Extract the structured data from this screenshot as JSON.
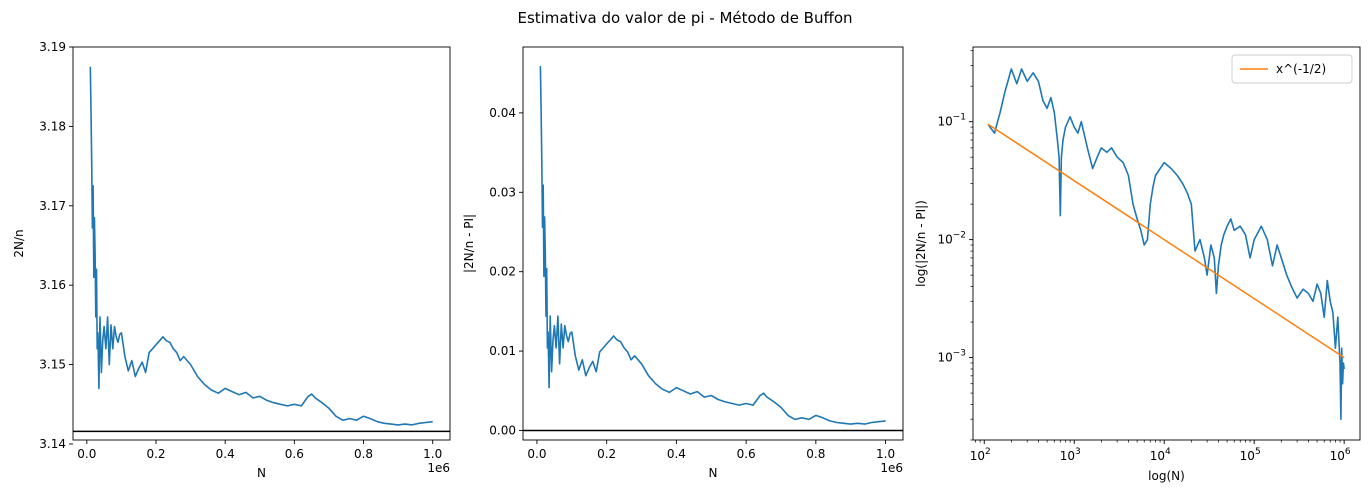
{
  "figure": {
    "suptitle": "Estimativa do valor de pi - Método de Buffon"
  },
  "chart_data": [
    {
      "type": "line",
      "xlabel": "N",
      "ylabel": "2N/n",
      "x_offset_label": "1e6",
      "xlim": [
        -40000,
        1050000
      ],
      "ylim": [
        3.1405,
        3.19
      ],
      "x_ticks": [
        0,
        200000,
        400000,
        600000,
        800000,
        1000000
      ],
      "x_tick_labels": [
        "0.0",
        "0.2",
        "0.4",
        "0.6",
        "0.8",
        "1.0"
      ],
      "y_ticks": [
        3.14,
        3.15,
        3.16,
        3.17,
        3.18,
        3.19
      ],
      "y_tick_labels": [
        "3.14",
        "3.15",
        "3.16",
        "3.17",
        "3.18",
        "3.19"
      ],
      "reference_line": {
        "y": 3.14159,
        "color": "#000000"
      },
      "series": [
        {
          "color": "#1f77b4",
          "x": [
            10000,
            12000,
            14000,
            16000,
            18000,
            20000,
            22000,
            24000,
            26000,
            28000,
            30000,
            32000,
            35000,
            38000,
            42000,
            46000,
            50000,
            55000,
            60000,
            65000,
            70000,
            75000,
            80000,
            85000,
            90000,
            95000,
            100000,
            110000,
            120000,
            130000,
            140000,
            150000,
            160000,
            170000,
            180000,
            190000,
            200000,
            210000,
            220000,
            230000,
            240000,
            250000,
            260000,
            270000,
            280000,
            300000,
            320000,
            340000,
            360000,
            380000,
            400000,
            420000,
            440000,
            460000,
            480000,
            500000,
            520000,
            540000,
            560000,
            580000,
            600000,
            620000,
            640000,
            650000,
            660000,
            680000,
            700000,
            720000,
            740000,
            760000,
            780000,
            800000,
            820000,
            840000,
            860000,
            880000,
            900000,
            920000,
            940000,
            960000,
            980000,
            1000000
          ],
          "y": [
            3.1875,
            3.182,
            3.1755,
            3.1672,
            3.1725,
            3.161,
            3.1685,
            3.164,
            3.156,
            3.162,
            3.152,
            3.154,
            3.147,
            3.156,
            3.149,
            3.153,
            3.1548,
            3.152,
            3.156,
            3.15,
            3.155,
            3.152,
            3.1548,
            3.1535,
            3.1528,
            3.1538,
            3.154,
            3.151,
            3.1492,
            3.1505,
            3.1485,
            3.1495,
            3.1503,
            3.149,
            3.1515,
            3.152,
            3.1525,
            3.153,
            3.1535,
            3.153,
            3.1528,
            3.152,
            3.1515,
            3.1505,
            3.151,
            3.15,
            3.1485,
            3.1475,
            3.1468,
            3.1464,
            3.147,
            3.1466,
            3.1462,
            3.1465,
            3.1458,
            3.146,
            3.1455,
            3.1452,
            3.145,
            3.1448,
            3.145,
            3.1448,
            3.146,
            3.1463,
            3.1458,
            3.1452,
            3.1445,
            3.1435,
            3.143,
            3.1432,
            3.143,
            3.1435,
            3.1432,
            3.1428,
            3.1426,
            3.1425,
            3.1424,
            3.1425,
            3.1424,
            3.1426,
            3.1427,
            3.1428
          ]
        }
      ]
    },
    {
      "type": "line",
      "xlabel": "N",
      "ylabel": "|2N/n - PI|",
      "x_offset_label": "1e6",
      "xlim": [
        -40000,
        1050000
      ],
      "ylim": [
        -0.0012,
        0.0483
      ],
      "x_ticks": [
        0,
        200000,
        400000,
        600000,
        800000,
        1000000
      ],
      "x_tick_labels": [
        "0.0",
        "0.2",
        "0.4",
        "0.6",
        "0.8",
        "1.0"
      ],
      "y_ticks": [
        0.0,
        0.01,
        0.02,
        0.03,
        0.04
      ],
      "y_tick_labels": [
        "0.00",
        "0.01",
        "0.02",
        "0.03",
        "0.04"
      ],
      "reference_line": {
        "y": 0,
        "color": "#000000"
      },
      "series": [
        {
          "color": "#1f77b4",
          "x": [
            10000,
            12000,
            14000,
            16000,
            18000,
            20000,
            22000,
            24000,
            26000,
            28000,
            30000,
            32000,
            35000,
            38000,
            42000,
            46000,
            50000,
            55000,
            60000,
            65000,
            70000,
            75000,
            80000,
            85000,
            90000,
            95000,
            100000,
            110000,
            120000,
            130000,
            140000,
            150000,
            160000,
            170000,
            180000,
            190000,
            200000,
            210000,
            220000,
            230000,
            240000,
            250000,
            260000,
            270000,
            280000,
            300000,
            320000,
            340000,
            360000,
            380000,
            400000,
            420000,
            440000,
            460000,
            480000,
            500000,
            520000,
            540000,
            560000,
            580000,
            600000,
            620000,
            640000,
            650000,
            660000,
            680000,
            700000,
            720000,
            740000,
            760000,
            780000,
            800000,
            820000,
            840000,
            860000,
            880000,
            900000,
            920000,
            940000,
            960000,
            980000,
            1000000
          ],
          "y": [
            0.0459,
            0.0404,
            0.0339,
            0.0256,
            0.0309,
            0.0194,
            0.0269,
            0.0224,
            0.0144,
            0.0204,
            0.0104,
            0.0124,
            0.0054,
            0.0144,
            0.0074,
            0.0114,
            0.0132,
            0.0104,
            0.0144,
            0.0084,
            0.0134,
            0.0104,
            0.0132,
            0.0119,
            0.0112,
            0.0122,
            0.0124,
            0.0094,
            0.0076,
            0.0089,
            0.0069,
            0.0079,
            0.0087,
            0.0074,
            0.0099,
            0.0104,
            0.0109,
            0.0114,
            0.0119,
            0.0114,
            0.0112,
            0.0104,
            0.0099,
            0.0089,
            0.0094,
            0.0084,
            0.0069,
            0.0059,
            0.0052,
            0.0048,
            0.0054,
            0.005,
            0.0046,
            0.0049,
            0.0042,
            0.0044,
            0.0039,
            0.0036,
            0.0034,
            0.0032,
            0.0034,
            0.0032,
            0.0044,
            0.0047,
            0.0042,
            0.0036,
            0.0029,
            0.0019,
            0.0014,
            0.0016,
            0.0014,
            0.0019,
            0.0016,
            0.0012,
            0.001,
            0.0009,
            0.0008,
            0.0009,
            0.0008,
            0.001,
            0.0011,
            0.0012
          ]
        }
      ]
    },
    {
      "type": "line",
      "xlabel": "log(N)",
      "ylabel": "log(|2N/n - PI|)",
      "x_scale": "log",
      "y_scale": "log",
      "xlim": [
        75,
        1500000
      ],
      "ylim": [
        0.0002,
        0.43
      ],
      "x_ticks": [
        100,
        1000,
        10000,
        100000,
        1000000
      ],
      "x_tick_bases": [
        "10",
        "10",
        "10",
        "10",
        "10"
      ],
      "x_tick_exponents": [
        "2",
        "3",
        "4",
        "5",
        "6"
      ],
      "y_ticks": [
        0.001,
        0.01,
        0.1
      ],
      "y_tick_bases": [
        "10",
        "10",
        "10"
      ],
      "y_tick_exponents": [
        "−3",
        "−2",
        "−1"
      ],
      "legend": {
        "position": "top-right",
        "entries": [
          "x^(-1/2)"
        ]
      },
      "series": [
        {
          "color": "#1f77b4",
          "x": [
            110,
            130,
            150,
            170,
            200,
            230,
            260,
            300,
            350,
            400,
            450,
            500,
            550,
            600,
            650,
            680,
            700,
            720,
            750,
            800,
            900,
            1000,
            1100,
            1200,
            1400,
            1600,
            1800,
            2000,
            2300,
            2600,
            3000,
            3500,
            4000,
            4500,
            5000,
            5500,
            6000,
            6500,
            7000,
            7500,
            8000,
            9000,
            10000,
            12000,
            14000,
            16000,
            18000,
            20000,
            22000,
            25000,
            28000,
            30000,
            33000,
            36000,
            38000,
            40000,
            43000,
            46000,
            50000,
            55000,
            60000,
            70000,
            80000,
            90000,
            100000,
            120000,
            140000,
            160000,
            180000,
            200000,
            230000,
            260000,
            300000,
            350000,
            400000,
            450000,
            500000,
            550000,
            600000,
            650000,
            700000,
            750000,
            800000,
            850000,
            900000,
            920000,
            940000,
            960000,
            980000,
            1000000
          ],
          "y": [
            0.095,
            0.08,
            0.12,
            0.18,
            0.28,
            0.21,
            0.28,
            0.22,
            0.26,
            0.22,
            0.15,
            0.13,
            0.16,
            0.12,
            0.07,
            0.05,
            0.016,
            0.05,
            0.07,
            0.09,
            0.11,
            0.09,
            0.08,
            0.1,
            0.06,
            0.04,
            0.05,
            0.06,
            0.055,
            0.06,
            0.05,
            0.045,
            0.035,
            0.02,
            0.015,
            0.012,
            0.009,
            0.01,
            0.02,
            0.028,
            0.035,
            0.04,
            0.045,
            0.04,
            0.035,
            0.03,
            0.025,
            0.02,
            0.008,
            0.01,
            0.007,
            0.005,
            0.009,
            0.007,
            0.0035,
            0.006,
            0.009,
            0.011,
            0.013,
            0.015,
            0.012,
            0.013,
            0.011,
            0.007,
            0.01,
            0.013,
            0.01,
            0.006,
            0.009,
            0.007,
            0.005,
            0.004,
            0.0032,
            0.0038,
            0.0035,
            0.003,
            0.0042,
            0.0035,
            0.0022,
            0.0045,
            0.003,
            0.0024,
            0.0012,
            0.0022,
            0.0009,
            0.0003,
            0.0012,
            0.0006,
            0.0009,
            0.0008
          ]
        },
        {
          "name": "x^(-1/2)",
          "color": "#ff7f0e",
          "x": [
            110,
            1000000
          ],
          "y": [
            0.0953,
            0.001
          ]
        }
      ]
    }
  ]
}
